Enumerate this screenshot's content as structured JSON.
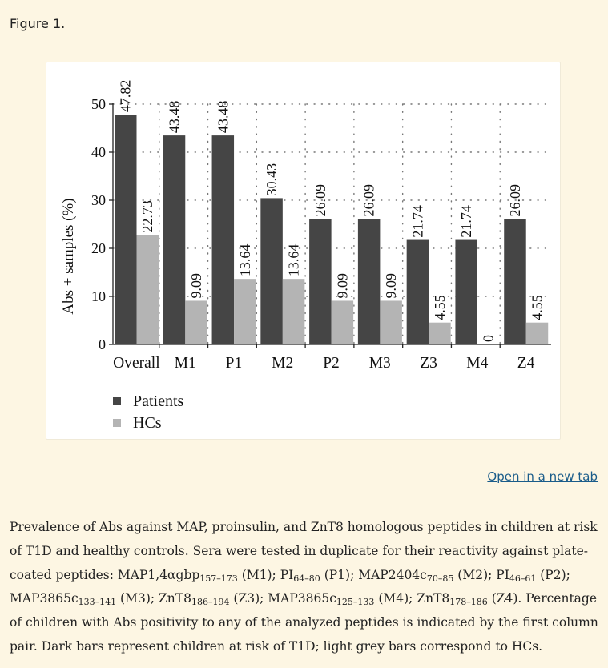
{
  "figure_label": "Figure 1.",
  "open_link": "Open in a new tab",
  "chart_data": {
    "type": "bar",
    "categories": [
      "Overall",
      "M1",
      "P1",
      "M2",
      "P2",
      "M3",
      "Z3",
      "M4",
      "Z4"
    ],
    "series": [
      {
        "name": "Patients",
        "values": [
          47.82,
          43.48,
          43.48,
          30.43,
          26.09,
          26.09,
          21.74,
          21.74,
          26.09
        ],
        "labels": [
          "47.82",
          "43.48",
          "43.48",
          "30.43",
          "26.09",
          "26.09",
          "21.74",
          "21.74",
          "26.09"
        ],
        "color": "#454545"
      },
      {
        "name": "HCs",
        "values": [
          22.73,
          9.09,
          13.64,
          13.64,
          9.09,
          9.09,
          4.55,
          0,
          4.55
        ],
        "labels": [
          "22.73",
          "9.09",
          "13.64",
          "13.64",
          "9.09",
          "9.09",
          "4.55",
          "0",
          "4.55"
        ],
        "color": "#b4b4b4"
      }
    ],
    "ylabel": "Abs + samples (%)",
    "ylim": [
      0,
      50
    ],
    "yticks": [
      "0",
      "10",
      "20",
      "30",
      "40",
      "50"
    ],
    "grid": "dotted",
    "legend": "bottom-left"
  },
  "caption": {
    "p1": "Prevalence of Abs against MAP, proinsulin, and ZnT8 homologous peptides in children at risk of T1D and healthy controls. Sera were tested in duplicate for their reactivity against plate-coated peptides: MAP1,4αgbp",
    "s1": "157–173",
    "p2": " (M1); PI",
    "s2": "64–80",
    "p3": " (P1); MAP2404c",
    "s3": "70–85",
    "p4": " (M2); PI",
    "s4": "46–61",
    "p5": " (P2); MAP3865c",
    "s5": "133–141",
    "p6": " (M3); ZnT8",
    "s6": "186–194",
    "p7": " (Z3); MAP3865c",
    "s7": "125–133",
    "p8": " (M4); ZnT8",
    "s8": "178–186",
    "p9": " (Z4). Percentage of children with Abs positivity to any of the analyzed peptides is indicated by the first column pair. Dark bars represent children at risk of T1D; light grey bars correspond to HCs."
  }
}
